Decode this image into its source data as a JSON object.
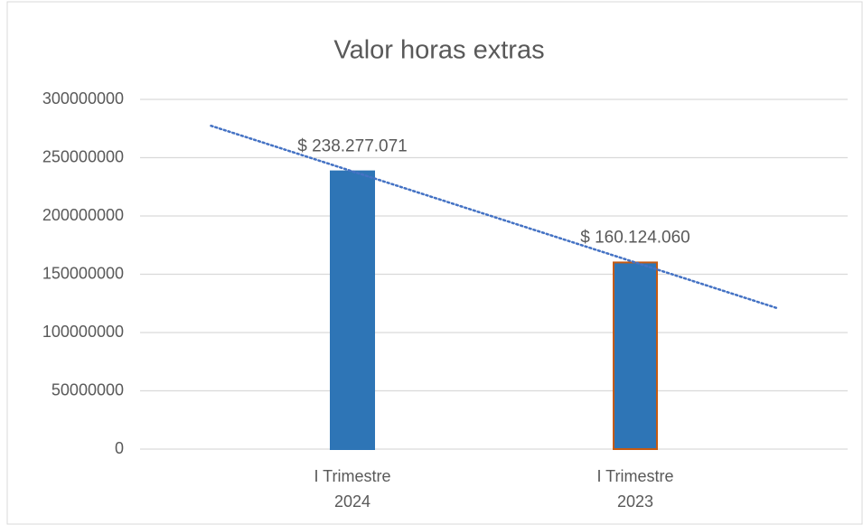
{
  "chart_data": {
    "type": "bar",
    "title": "Valor horas extras",
    "categories": [
      "I Trimestre\n2024",
      "I Trimestre\n2023"
    ],
    "values": [
      238277071,
      160124060
    ],
    "value_labels": [
      "$ 238.277.071",
      "$ 160.124.060"
    ],
    "color": "#2e75b6",
    "edgecolors": [
      "#2e75b6",
      "#c55a11"
    ],
    "ylim": [
      0,
      300000000
    ],
    "yticks": [
      0,
      50000000,
      100000000,
      150000000,
      200000000,
      250000000,
      300000000
    ],
    "grid": true,
    "trendline": {
      "type": "linear",
      "color": "#4472c4"
    }
  }
}
